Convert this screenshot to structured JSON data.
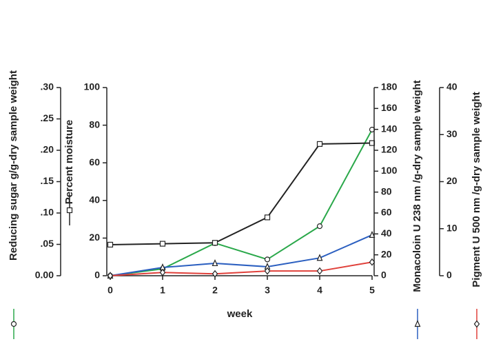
{
  "chart_data": {
    "type": "line",
    "x_label": "week",
    "x": [
      0,
      1,
      2,
      3,
      4,
      5
    ],
    "xlim": [
      0,
      5
    ],
    "xticks": [
      0,
      1,
      2,
      3,
      4,
      5
    ],
    "series": [
      {
        "name": "Reducing sugar g/g-dry sample weight",
        "color": "#2aa84a",
        "marker": "circle",
        "values": [
          0,
          0.011,
          0.052,
          0.026,
          0.079,
          0.233
        ],
        "ylim": [
          0,
          0.3
        ],
        "yticks": [
          {
            "value": 0,
            "label": "0.00"
          },
          {
            "value": 0.05,
            "label": ".05"
          },
          {
            "value": 0.1,
            "label": ".10"
          },
          {
            "value": 0.15,
            "label": ".15"
          },
          {
            "value": 0.2,
            "label": ".20"
          },
          {
            "value": 0.25,
            "label": ".25"
          },
          {
            "value": 0.3,
            "label": ".30"
          }
        ]
      },
      {
        "name": "Percent moisture",
        "color": "#222222",
        "marker": "square",
        "values": [
          16.5,
          17,
          17.5,
          31,
          70,
          70.5
        ],
        "ylim": [
          0,
          100
        ],
        "yticks": [
          0,
          20,
          40,
          60,
          80,
          100
        ]
      },
      {
        "name": "Monacoloin U 238 nm /g-dry sample weight",
        "color": "#2b5fc0",
        "marker": "triangle",
        "values": [
          0,
          7.9,
          11.9,
          8.6,
          17,
          39
        ],
        "ylim": [
          0,
          180
        ],
        "yticks": [
          0,
          20,
          40,
          60,
          80,
          100,
          120,
          140,
          160,
          180
        ]
      },
      {
        "name": "Pigment U 500 nm /g-dry sample weight",
        "color": "#e0403a",
        "marker": "diamond",
        "values": [
          0,
          0.7,
          0.4,
          1.0,
          1.0,
          2.9
        ],
        "ylim": [
          0,
          40
        ],
        "yticks": [
          0,
          10,
          20,
          30,
          40
        ]
      }
    ]
  }
}
